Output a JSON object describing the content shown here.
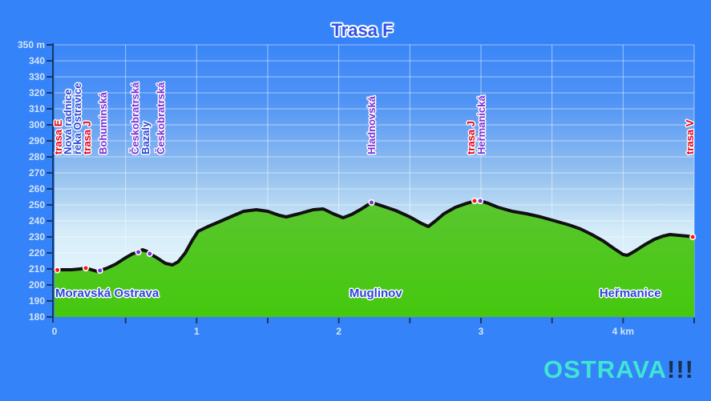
{
  "title": "Trasa F",
  "logo": {
    "text": "OSTRAVA",
    "exclamation": "!!!"
  },
  "colors": {
    "frame_blue": "#3583f8",
    "sky_top": "#3b86f8",
    "sky_mid": "#9cc6ef",
    "sky_bottom": "#eaf8fd",
    "ground_green_top": "#5ac62f",
    "ground_green_bottom": "#45c80e",
    "profile_line": "#111111",
    "gridline": "rgba(255,255,255,0.5)",
    "axis_navy": "#1a3766",
    "tick_label": "#d2e4fc",
    "route_red": "#e80019",
    "street_purple": "#7c2fd9",
    "place_blue": "#2b46d8",
    "title_blue": "#2d53e8",
    "logo_cyan": "#3fe5d2",
    "logo_navy": "#173050",
    "marker_red": "#ff1414",
    "marker_purple": "#7d2fd9"
  },
  "chart_data": {
    "type": "area",
    "title": "Trasa F",
    "x_unit": "km",
    "y_unit": "m",
    "xlim": [
      0,
      4.5
    ],
    "ylim": [
      180,
      350
    ],
    "grid": true,
    "x_minor_tick_step_km": 0.5,
    "y_tick_step_m": 10,
    "y_tick_labels": [
      {
        "m": 350,
        "label": "350 m"
      },
      {
        "m": 340,
        "label": "340"
      },
      {
        "m": 330,
        "label": "330"
      },
      {
        "m": 320,
        "label": "320"
      },
      {
        "m": 310,
        "label": "310"
      },
      {
        "m": 300,
        "label": "300"
      },
      {
        "m": 290,
        "label": "290"
      },
      {
        "m": 280,
        "label": "280"
      },
      {
        "m": 270,
        "label": "270"
      },
      {
        "m": 260,
        "label": "260"
      },
      {
        "m": 250,
        "label": "250"
      },
      {
        "m": 240,
        "label": "240"
      },
      {
        "m": 230,
        "label": "230"
      },
      {
        "m": 220,
        "label": "220"
      },
      {
        "m": 210,
        "label": "210"
      },
      {
        "m": 200,
        "label": "200"
      },
      {
        "m": 190,
        "label": "190"
      },
      {
        "m": 180,
        "label": "180"
      }
    ],
    "x_tick_labels": [
      {
        "km": 0,
        "label": "0"
      },
      {
        "km": 1,
        "label": "1"
      },
      {
        "km": 2,
        "label": "2"
      },
      {
        "km": 3,
        "label": "3"
      },
      {
        "km": 4,
        "label": "4 km"
      }
    ],
    "profile_km_m": [
      [
        0.0,
        209
      ],
      [
        0.05,
        209.5
      ],
      [
        0.12,
        209.5
      ],
      [
        0.18,
        210
      ],
      [
        0.22,
        210.5
      ],
      [
        0.26,
        209.5
      ],
      [
        0.3,
        208.5
      ],
      [
        0.32,
        209
      ],
      [
        0.37,
        210.5
      ],
      [
        0.43,
        213
      ],
      [
        0.5,
        217
      ],
      [
        0.55,
        219.5
      ],
      [
        0.59,
        220.5
      ],
      [
        0.62,
        222
      ],
      [
        0.65,
        221
      ],
      [
        0.67,
        219.5
      ],
      [
        0.72,
        217
      ],
      [
        0.78,
        213.5
      ],
      [
        0.83,
        212.5
      ],
      [
        0.87,
        214.5
      ],
      [
        0.92,
        220
      ],
      [
        0.97,
        228
      ],
      [
        1.01,
        233.5
      ],
      [
        1.08,
        236.5
      ],
      [
        1.16,
        239.5
      ],
      [
        1.25,
        243
      ],
      [
        1.33,
        246
      ],
      [
        1.42,
        247
      ],
      [
        1.5,
        246
      ],
      [
        1.58,
        243.5
      ],
      [
        1.63,
        242.5
      ],
      [
        1.72,
        244.5
      ],
      [
        1.82,
        247
      ],
      [
        1.89,
        247.5
      ],
      [
        1.96,
        244.5
      ],
      [
        2.03,
        242
      ],
      [
        2.09,
        244
      ],
      [
        2.16,
        247.5
      ],
      [
        2.23,
        251.5
      ],
      [
        2.3,
        249.5
      ],
      [
        2.4,
        246.5
      ],
      [
        2.5,
        242.5
      ],
      [
        2.58,
        238.5
      ],
      [
        2.63,
        236.5
      ],
      [
        2.68,
        240
      ],
      [
        2.74,
        244.5
      ],
      [
        2.82,
        248.5
      ],
      [
        2.9,
        251
      ],
      [
        2.96,
        252.5
      ],
      [
        3.0,
        252.5
      ],
      [
        3.05,
        251
      ],
      [
        3.12,
        248.5
      ],
      [
        3.22,
        246
      ],
      [
        3.32,
        244.5
      ],
      [
        3.42,
        242.5
      ],
      [
        3.52,
        240
      ],
      [
        3.62,
        237.5
      ],
      [
        3.7,
        235
      ],
      [
        3.78,
        231.5
      ],
      [
        3.86,
        227.5
      ],
      [
        3.94,
        222.5
      ],
      [
        4.0,
        219
      ],
      [
        4.03,
        218.5
      ],
      [
        4.08,
        221
      ],
      [
        4.15,
        225
      ],
      [
        4.22,
        228.5
      ],
      [
        4.28,
        230.5
      ],
      [
        4.33,
        231.5
      ],
      [
        4.39,
        231
      ],
      [
        4.45,
        230.5
      ],
      [
        4.5,
        230
      ]
    ],
    "markers": [
      {
        "km": 0.02,
        "m": 209.3,
        "type": "route"
      },
      {
        "km": 0.22,
        "m": 210.5,
        "type": "route"
      },
      {
        "km": 0.32,
        "m": 209.0,
        "type": "street"
      },
      {
        "km": 0.59,
        "m": 220.5,
        "type": "street"
      },
      {
        "km": 0.67,
        "m": 219.5,
        "type": "street"
      },
      {
        "km": 2.23,
        "m": 251.5,
        "type": "street"
      },
      {
        "km": 2.955,
        "m": 252.5,
        "type": "route"
      },
      {
        "km": 2.995,
        "m": 252.5,
        "type": "street"
      },
      {
        "km": 4.49,
        "m": 230.0,
        "type": "route"
      }
    ],
    "point_labels": [
      {
        "text": "trasa E",
        "km": 0.03,
        "type": "route"
      },
      {
        "text": "Nová radnice",
        "km": 0.098,
        "type": "place"
      },
      {
        "text": "řeka Ostravice",
        "km": 0.165,
        "type": "place"
      },
      {
        "text": "trasa J",
        "km": 0.232,
        "type": "route"
      },
      {
        "text": "Bohumínská",
        "km": 0.345,
        "type": "street"
      },
      {
        "text": "Českobratrská",
        "km": 0.57,
        "type": "street"
      },
      {
        "text": "Bazaly",
        "km": 0.645,
        "type": "place"
      },
      {
        "text": "Českobratrská",
        "km": 0.75,
        "type": "street"
      },
      {
        "text": "Hladnovská",
        "km": 2.235,
        "type": "street"
      },
      {
        "text": "trasa J",
        "km": 2.933,
        "type": "route"
      },
      {
        "text": "Heřmanická",
        "km": 3.008,
        "type": "street"
      },
      {
        "text": "trasa V",
        "km": 4.472,
        "type": "route"
      }
    ],
    "area_labels": [
      {
        "text": "Moravská Ostrava",
        "km": 0.37
      },
      {
        "text": "Muglinov",
        "km": 2.26
      },
      {
        "text": "Heřmanice",
        "km": 4.05
      }
    ]
  }
}
